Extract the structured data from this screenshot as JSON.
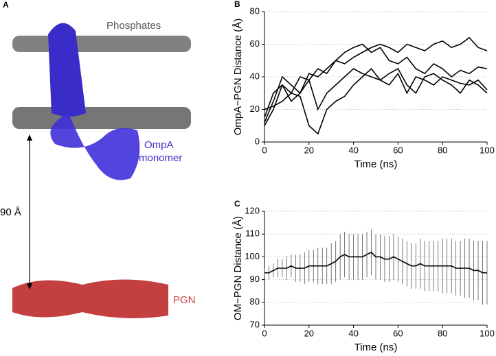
{
  "figure": {
    "panel": "A",
    "top_label": "Phosphates",
    "protein_label": [
      "OmpA",
      "monomer"
    ],
    "distance_label": "90 Å",
    "pgn_label": "PGN"
  },
  "chart_data": [
    {
      "type": "line",
      "panel": "B",
      "x_label": "Time (ns)",
      "y_label": "OmpA−PGN Distance (Å)",
      "x": [
        0,
        4,
        8,
        12,
        16,
        20,
        24,
        28,
        32,
        36,
        40,
        44,
        48,
        52,
        56,
        60,
        64,
        68,
        72,
        76,
        80,
        84,
        88,
        92,
        96,
        100
      ],
      "xlim": [
        0,
        100
      ],
      "ylim": [
        0,
        80
      ],
      "xticks": [
        0,
        20,
        40,
        60,
        80,
        100
      ],
      "yticks": [
        0,
        20,
        40,
        60,
        80
      ],
      "grid": true,
      "series": [
        {
          "color": "#000000",
          "values": [
            10,
            20,
            35,
            30,
            40,
            38,
            45,
            42,
            50,
            48,
            52,
            55,
            58,
            60,
            58,
            55,
            60,
            58,
            56,
            60,
            62,
            58,
            60,
            64,
            58,
            56
          ]
        },
        {
          "color": "#000000",
          "values": [
            12,
            25,
            40,
            35,
            30,
            42,
            40,
            45,
            50,
            55,
            58,
            60,
            55,
            58,
            50,
            48,
            52,
            45,
            42,
            48,
            45,
            40,
            44,
            42,
            46,
            45
          ]
        },
        {
          "color": "#000000",
          "values": [
            15,
            30,
            35,
            25,
            30,
            38,
            20,
            30,
            35,
            40,
            45,
            42,
            40,
            38,
            35,
            42,
            30,
            40,
            38,
            35,
            40,
            38,
            36,
            35,
            38,
            32
          ]
        },
        {
          "color": "#000000",
          "values": [
            20,
            22,
            25,
            30,
            28,
            10,
            5,
            20,
            25,
            28,
            35,
            40,
            45,
            38,
            42,
            45,
            35,
            30,
            40,
            42,
            38,
            35,
            30,
            38,
            35,
            30
          ]
        }
      ]
    },
    {
      "type": "line",
      "panel": "C",
      "x_label": "Time (ns)",
      "y_label": "OM−PGN Distance (Å)",
      "x": [
        0,
        2,
        4,
        6,
        8,
        10,
        12,
        14,
        16,
        18,
        20,
        22,
        24,
        26,
        28,
        30,
        32,
        34,
        36,
        38,
        40,
        42,
        44,
        46,
        48,
        50,
        52,
        54,
        56,
        58,
        60,
        62,
        64,
        66,
        68,
        70,
        72,
        74,
        76,
        78,
        80,
        82,
        84,
        86,
        88,
        90,
        92,
        94,
        96,
        98,
        100
      ],
      "xlim": [
        0,
        100
      ],
      "ylim": [
        70,
        120
      ],
      "xticks": [
        0,
        20,
        40,
        60,
        80,
        100
      ],
      "yticks": [
        70,
        80,
        90,
        100,
        110,
        120
      ],
      "grid": true,
      "series": [
        {
          "color": "#000000",
          "error_color": "#555555",
          "values": [
            93,
            93,
            94,
            95,
            95,
            95,
            96,
            95,
            95,
            95,
            96,
            96,
            96,
            96,
            96,
            97,
            98,
            100,
            101,
            100,
            100,
            100,
            100,
            101,
            102,
            100,
            100,
            99,
            99,
            100,
            99,
            98,
            97,
            96,
            96,
            97,
            96,
            96,
            96,
            96,
            96,
            96,
            96,
            95,
            95,
            95,
            95,
            94,
            94,
            93,
            93
          ],
          "errors": [
            2,
            3,
            3,
            4,
            4,
            5,
            5,
            6,
            6,
            7,
            7,
            7,
            8,
            8,
            8,
            9,
            9,
            10,
            10,
            10,
            10,
            10,
            10,
            10,
            10,
            10,
            10,
            10,
            10,
            10,
            10,
            10,
            10,
            10,
            10,
            11,
            11,
            11,
            11,
            11,
            12,
            12,
            12,
            12,
            12,
            13,
            13,
            13,
            13,
            14,
            14
          ]
        }
      ]
    }
  ]
}
